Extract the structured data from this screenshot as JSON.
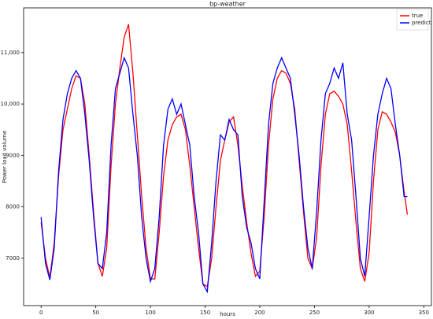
{
  "chart_data": {
    "type": "line",
    "title": "bp-weather",
    "xlabel": "hours",
    "ylabel": "Power load volume",
    "x": [
      0,
      4,
      8,
      12,
      16,
      20,
      24,
      28,
      32,
      36,
      40,
      44,
      48,
      52,
      56,
      60,
      64,
      68,
      72,
      76,
      80,
      84,
      88,
      92,
      96,
      100,
      104,
      108,
      112,
      116,
      120,
      124,
      128,
      132,
      136,
      140,
      144,
      148,
      152,
      156,
      160,
      164,
      168,
      172,
      176,
      180,
      184,
      188,
      192,
      196,
      200,
      204,
      208,
      212,
      216,
      220,
      224,
      228,
      232,
      236,
      240,
      244,
      248,
      252,
      256,
      260,
      264,
      268,
      272,
      276,
      280,
      284,
      288,
      292,
      296,
      300,
      304,
      308,
      312,
      316,
      320,
      324,
      328,
      332,
      335
    ],
    "series": [
      {
        "name": "true",
        "color": "#ff0000",
        "values": [
          7700,
          7000,
          6620,
          7300,
          8600,
          9500,
          9900,
          10300,
          10550,
          10500,
          10000,
          9000,
          7900,
          6900,
          6650,
          7200,
          8800,
          10000,
          10700,
          11300,
          11550,
          10600,
          9400,
          8200,
          7200,
          6600,
          6600,
          7500,
          8600,
          9300,
          9600,
          9750,
          9800,
          9500,
          8800,
          8000,
          7200,
          6500,
          6450,
          7000,
          8000,
          8900,
          9300,
          9650,
          9750,
          9200,
          8400,
          7700,
          7100,
          6650,
          6750,
          7800,
          9200,
          10100,
          10500,
          10650,
          10600,
          10400,
          9900,
          8900,
          7900,
          7000,
          6800,
          7400,
          8800,
          9800,
          10200,
          10250,
          10150,
          10000,
          9600,
          8700,
          7700,
          6800,
          6550,
          7100,
          8500,
          9500,
          9850,
          9800,
          9650,
          9450,
          9000,
          8300,
          7850
        ]
      },
      {
        "name": "predict",
        "color": "#0000ff",
        "values": [
          7800,
          6900,
          6580,
          7200,
          8700,
          9700,
          10200,
          10500,
          10650,
          10500,
          9800,
          8900,
          7800,
          6900,
          6800,
          7500,
          9200,
          10300,
          10600,
          10900,
          10700,
          9800,
          9000,
          7800,
          7000,
          6550,
          6800,
          7800,
          9200,
          9900,
          10100,
          9800,
          10000,
          9600,
          9200,
          8200,
          7500,
          6500,
          6350,
          7300,
          8500,
          9400,
          9300,
          9700,
          9500,
          9400,
          8200,
          7600,
          7300,
          6800,
          6600,
          8100,
          9600,
          10400,
          10700,
          10900,
          10700,
          10500,
          9800,
          9000,
          8000,
          7200,
          6800,
          7900,
          9300,
          10200,
          10400,
          10700,
          10500,
          10800,
          9800,
          9300,
          8200,
          7000,
          6650,
          7800,
          9000,
          9800,
          10200,
          10500,
          10300,
          9600,
          9000,
          8200,
          8200
        ]
      }
    ],
    "xlim": [
      -16,
      357
    ],
    "ylim": [
      6080,
      11870
    ],
    "xticks": [
      0,
      50,
      100,
      150,
      200,
      250,
      300,
      350
    ],
    "yticks": [
      7000,
      8000,
      9000,
      {
        "value": 10000,
        "label": "10,000"
      },
      {
        "value": 11000,
        "label": "11,000"
      }
    ],
    "legend": "upper right"
  }
}
